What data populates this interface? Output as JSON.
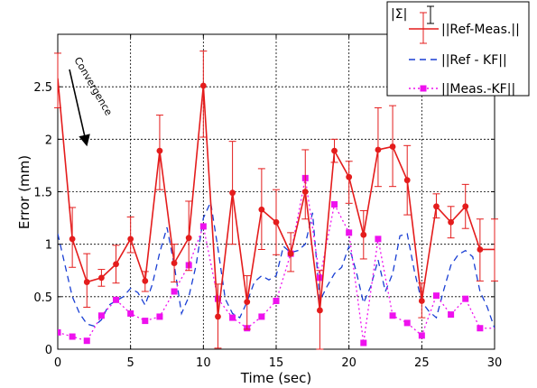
{
  "chart_data": {
    "type": "line",
    "xlabel": "Time (sec)",
    "ylabel": "Error  (mm)",
    "xlim": [
      0,
      30
    ],
    "ylim": [
      0,
      3
    ],
    "xticks": [
      0,
      5,
      10,
      15,
      20,
      25,
      30
    ],
    "yticks": [
      0,
      0.5,
      1,
      1.5,
      2,
      2.5
    ],
    "grid": true,
    "legend_position": "top-right",
    "legend_header": "|Σ|",
    "annotation": "Convergence",
    "series": [
      {
        "name": "||Ref-Meas.||",
        "style": "solid-line-circle-errorbars",
        "color": "#e41c1c",
        "x": [
          0,
          1,
          2,
          3,
          4,
          5,
          6,
          7,
          8,
          9,
          10,
          11,
          12,
          13,
          14,
          15,
          16,
          17,
          18,
          19,
          20,
          21,
          22,
          23,
          24,
          25,
          26,
          27,
          28,
          29,
          30
        ],
        "y": [
          2.58,
          1.05,
          0.64,
          0.68,
          0.81,
          1.05,
          0.65,
          1.89,
          0.82,
          1.06,
          2.51,
          0.31,
          1.49,
          0.45,
          1.33,
          1.21,
          0.91,
          1.5,
          0.37,
          1.89,
          1.64,
          1.09,
          1.9,
          1.93,
          1.61,
          0.46,
          1.36,
          1.21,
          1.36,
          0.95,
          0.95
        ],
        "error_low": [
          2.3,
          0.78,
          0.4,
          0.6,
          0.63,
          0.92,
          0.55,
          1.52,
          0.64,
          0.75,
          2.02,
          0.01,
          1.0,
          0.19,
          0.95,
          0.9,
          0.74,
          1.24,
          0.0,
          1.78,
          1.39,
          0.86,
          1.55,
          1.55,
          1.28,
          0.3,
          1.25,
          1.06,
          1.15,
          0.65,
          0.65
        ],
        "error_high": [
          2.82,
          1.35,
          0.91,
          0.76,
          0.99,
          1.26,
          0.74,
          2.23,
          1.0,
          1.41,
          2.84,
          0.62,
          1.98,
          0.7,
          1.72,
          1.52,
          1.11,
          1.9,
          0.75,
          2.0,
          1.79,
          1.32,
          2.3,
          2.32,
          1.94,
          0.63,
          1.48,
          1.36,
          1.57,
          1.24,
          1.24
        ]
      },
      {
        "name": "||Ref - KF||",
        "style": "dashed-line",
        "color": "#1a3fd4",
        "x": [
          0,
          0.5,
          1,
          1.5,
          2,
          2.5,
          3,
          3.5,
          4,
          4.5,
          5,
          5.5,
          6,
          6.5,
          7,
          7.5,
          8,
          8.5,
          9,
          9.5,
          10,
          10.5,
          11,
          11.5,
          12,
          12.5,
          13,
          13.5,
          14,
          14.5,
          15,
          15.5,
          16,
          16.5,
          17,
          17.5,
          18,
          18.5,
          19,
          19.5,
          20,
          20.5,
          21,
          21.5,
          22,
          22.5,
          23,
          23.5,
          24,
          24.5,
          25,
          25.5,
          26,
          26.5,
          27,
          27.5,
          28,
          28.5,
          29,
          29.5,
          30
        ],
        "y": [
          1.1,
          0.8,
          0.5,
          0.34,
          0.24,
          0.22,
          0.28,
          0.42,
          0.46,
          0.5,
          0.58,
          0.54,
          0.42,
          0.62,
          0.92,
          1.16,
          0.8,
          0.34,
          0.5,
          0.8,
          1.25,
          1.4,
          0.96,
          0.48,
          0.34,
          0.3,
          0.45,
          0.64,
          0.7,
          0.66,
          0.7,
          0.98,
          0.92,
          0.94,
          1.0,
          1.3,
          0.46,
          0.6,
          0.72,
          0.78,
          0.98,
          0.74,
          0.44,
          0.6,
          0.85,
          0.55,
          0.72,
          1.08,
          1.1,
          0.74,
          0.45,
          0.36,
          0.3,
          0.56,
          0.8,
          0.9,
          0.94,
          0.88,
          0.55,
          0.4,
          0.2
        ]
      },
      {
        "name": "||Meas.-KF||",
        "style": "dotted-line-square",
        "color": "#ee11ee",
        "x": [
          0,
          1,
          2,
          3,
          4,
          5,
          6,
          7,
          8,
          9,
          10,
          11,
          12,
          13,
          14,
          15,
          16,
          17,
          18,
          19,
          20,
          21,
          22,
          23,
          24,
          25,
          26,
          27,
          28,
          29,
          30
        ],
        "y": [
          0.16,
          0.12,
          0.08,
          0.32,
          0.47,
          0.34,
          0.27,
          0.31,
          0.55,
          0.8,
          1.17,
          0.48,
          0.3,
          0.2,
          0.31,
          0.46,
          0.91,
          1.63,
          0.68,
          1.38,
          1.11,
          0.06,
          1.05,
          0.32,
          0.25,
          0.13,
          0.51,
          0.33,
          0.48,
          0.2,
          0.2
        ]
      }
    ]
  }
}
